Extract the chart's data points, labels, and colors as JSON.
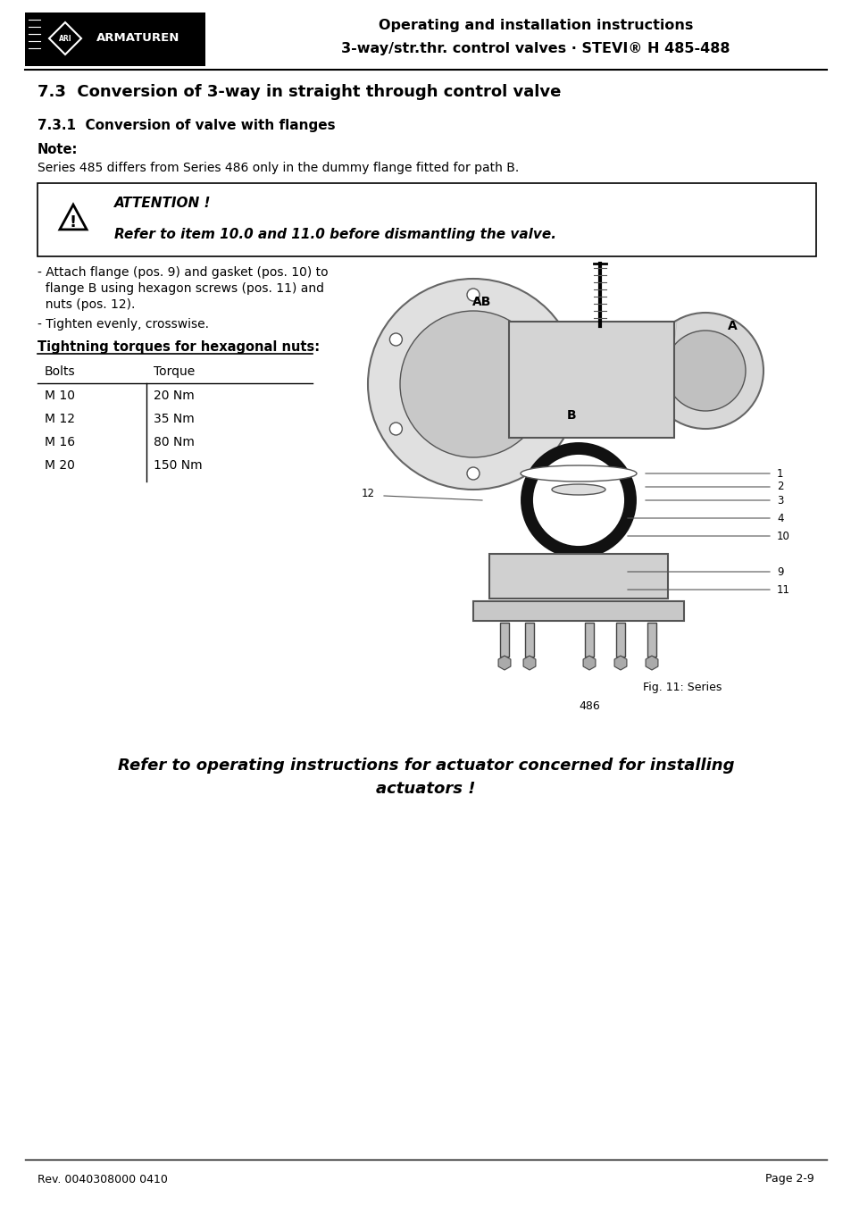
{
  "page_width": 9.54,
  "page_height": 13.5,
  "bg_color": "#ffffff",
  "header": {
    "title_line1": "Operating and installation instructions",
    "title_line2": "3-way/str.thr. control valves · STEVI® H 485-488"
  },
  "section_title": "7.3  Conversion of 3-way in straight through control valve",
  "subsection_title": "7.3.1  Conversion of valve with flanges",
  "note_label": "Note:",
  "note_text": "Series 485 differs from Series 486 only in the dummy flange fitted for path B.",
  "attention_title": "ATTENTION !",
  "attention_text": "Refer to item 10.0 and 11.0 before dismantling the valve.",
  "bullet1_line1": "- Attach flange (pos. 9) and gasket (pos. 10) to",
  "bullet1_line2": "  flange B using hexagon screws (pos. 11) and",
  "bullet1_line3": "  nuts (pos. 12).",
  "bullet2": "- Tighten evenly, crosswise.",
  "table_title": "Tightning torques for hexagonal nuts:",
  "table_header": [
    "Bolts",
    "Torque"
  ],
  "table_rows": [
    [
      "M 10",
      "20 Nm"
    ],
    [
      "M 12",
      "35 Nm"
    ],
    [
      "M 16",
      "80 Nm"
    ],
    [
      "M 20",
      "150 Nm"
    ]
  ],
  "fig_caption_line1": "Fig. 11: Series",
  "fig_caption_line2": "486",
  "bottom_italic": "Refer to operating instructions for actuator concerned for installing\nactuators !",
  "footer_left": "Rev. 0040308000 0410",
  "footer_right": "Page 2-9"
}
